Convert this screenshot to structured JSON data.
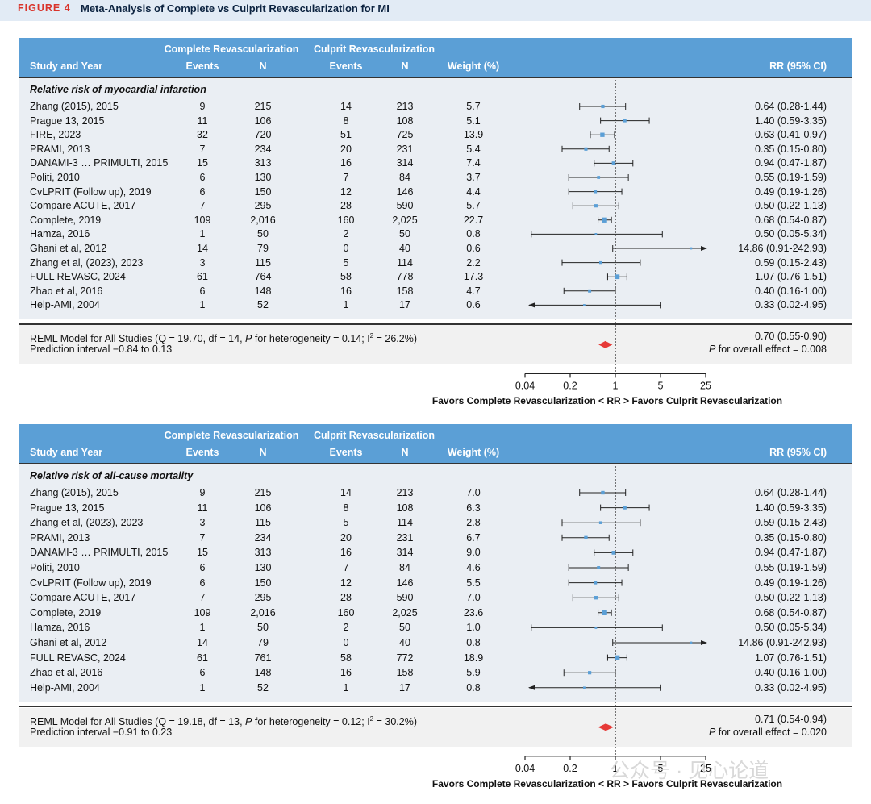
{
  "figure": {
    "label": "FIGURE 4",
    "title": "Meta-Analysis of Complete vs Culprit Revascularization for MI"
  },
  "headers": {
    "group_complete": "Complete Revascularization",
    "group_culprit": "Culprit Revascularization",
    "study": "Study and Year",
    "events": "Events",
    "n": "N",
    "weight": "Weight (%)",
    "rr": "RR (95% CI)"
  },
  "axis": {
    "ticks": [
      "0.04",
      "0.2",
      "1",
      "5",
      "25"
    ],
    "tick_values": [
      0.04,
      0.2,
      1,
      5,
      25
    ],
    "title": "Favors Complete Revascularization < RR > Favors Culprit Revascularization",
    "scale": "log",
    "null_value": 1
  },
  "chart_data": [
    {
      "type": "forest",
      "section_title": "Relative risk of myocardial infarction",
      "rows": [
        {
          "study": "Zhang (2015), 2015",
          "ce": "9",
          "cn": "215",
          "ue": "14",
          "un": "213",
          "w": "5.7",
          "rr_text": "0.64 (0.28-1.44)",
          "rr": 0.64,
          "lo": 0.28,
          "hi": 1.44
        },
        {
          "study": "Prague 13, 2015",
          "ce": "11",
          "cn": "106",
          "ue": "8",
          "un": "108",
          "w": "5.1",
          "rr_text": "1.40 (0.59-3.35)",
          "rr": 1.4,
          "lo": 0.59,
          "hi": 3.35
        },
        {
          "study": "FIRE, 2023",
          "ce": "32",
          "cn": "720",
          "ue": "51",
          "un": "725",
          "w": "13.9",
          "rr_text": "0.63 (0.41-0.97)",
          "rr": 0.63,
          "lo": 0.41,
          "hi": 0.97
        },
        {
          "study": "PRAMI, 2013",
          "ce": "7",
          "cn": "234",
          "ue": "20",
          "un": "231",
          "w": "5.4",
          "rr_text": "0.35 (0.15-0.80)",
          "rr": 0.35,
          "lo": 0.15,
          "hi": 0.8
        },
        {
          "study": "DANAMI-3 … PRIMULTI, 2015",
          "ce": "15",
          "cn": "313",
          "ue": "16",
          "un": "314",
          "w": "7.4",
          "rr_text": "0.94 (0.47-1.87)",
          "rr": 0.94,
          "lo": 0.47,
          "hi": 1.87
        },
        {
          "study": "Politi, 2010",
          "ce": "6",
          "cn": "130",
          "ue": "7",
          "un": "84",
          "w": "3.7",
          "rr_text": "0.55 (0.19-1.59)",
          "rr": 0.55,
          "lo": 0.19,
          "hi": 1.59
        },
        {
          "study": "CvLPRIT (Follow up), 2019",
          "ce": "6",
          "cn": "150",
          "ue": "12",
          "un": "146",
          "w": "4.4",
          "rr_text": "0.49 (0.19-1.26)",
          "rr": 0.49,
          "lo": 0.19,
          "hi": 1.26
        },
        {
          "study": "Compare ACUTE, 2017",
          "ce": "7",
          "cn": "295",
          "ue": "28",
          "un": "590",
          "w": "5.7",
          "rr_text": "0.50 (0.22-1.13)",
          "rr": 0.5,
          "lo": 0.22,
          "hi": 1.13
        },
        {
          "study": "Complete, 2019",
          "ce": "109",
          "cn": "2,016",
          "ue": "160",
          "un": "2,025",
          "w": "22.7",
          "rr_text": "0.68 (0.54-0.87)",
          "rr": 0.68,
          "lo": 0.54,
          "hi": 0.87
        },
        {
          "study": "Hamza, 2016",
          "ce": "1",
          "cn": "50",
          "ue": "2",
          "un": "50",
          "w": "0.8",
          "rr_text": "0.50 (0.05-5.34)",
          "rr": 0.5,
          "lo": 0.05,
          "hi": 5.34
        },
        {
          "study": "Ghani et al, 2012",
          "ce": "14",
          "cn": "79",
          "ue": "0",
          "un": "40",
          "w": "0.6",
          "rr_text": "14.86 (0.91-242.93)",
          "rr": 14.86,
          "lo": 0.91,
          "hi": 242.93
        },
        {
          "study": "Zhang et al, (2023), 2023",
          "ce": "3",
          "cn": "115",
          "ue": "5",
          "un": "114",
          "w": "2.2",
          "rr_text": "0.59 (0.15-2.43)",
          "rr": 0.59,
          "lo": 0.15,
          "hi": 2.43
        },
        {
          "study": "FULL REVASC, 2024",
          "ce": "61",
          "cn": "764",
          "ue": "58",
          "un": "778",
          "w": "17.3",
          "rr_text": "1.07 (0.76-1.51)",
          "rr": 1.07,
          "lo": 0.76,
          "hi": 1.51
        },
        {
          "study": "Zhao et al, 2016",
          "ce": "6",
          "cn": "148",
          "ue": "16",
          "un": "158",
          "w": "4.7",
          "rr_text": "0.40 (0.16-1.00)",
          "rr": 0.4,
          "lo": 0.16,
          "hi": 1.0
        },
        {
          "study": "Help-AMI, 2004",
          "ce": "1",
          "cn": "52",
          "ue": "1",
          "un": "17",
          "w": "0.6",
          "rr_text": "0.33 (0.02-4.95)",
          "rr": 0.33,
          "lo": 0.02,
          "hi": 4.95
        }
      ],
      "summary": {
        "model_pre": "REML Model for All Studies (Q = 19.70, df = 14, ",
        "p_italic": "P",
        "model_mid": " for heterogeneity = 0.14; I",
        "sup": "2",
        "model_post": " = 26.2%)",
        "prediction": "Prediction interval −0.84 to 0.13",
        "rr_text": "0.70 (0.55-0.90)",
        "overall_p_italic": "P",
        "overall_p": " for overall effect = 0.008",
        "rr": 0.7,
        "lo": 0.55,
        "hi": 0.9
      }
    },
    {
      "type": "forest",
      "section_title": "Relative risk of all-cause mortality",
      "rows": [
        {
          "study": "Zhang (2015), 2015",
          "ce": "9",
          "cn": "215",
          "ue": "14",
          "un": "213",
          "w": "7.0",
          "rr_text": "0.64 (0.28-1.44)",
          "rr": 0.64,
          "lo": 0.28,
          "hi": 1.44
        },
        {
          "study": "Prague 13, 2015",
          "ce": "11",
          "cn": "106",
          "ue": "8",
          "un": "108",
          "w": "6.3",
          "rr_text": "1.40 (0.59-3.35)",
          "rr": 1.4,
          "lo": 0.59,
          "hi": 3.35
        },
        {
          "study": "Zhang et al, (2023), 2023",
          "ce": "3",
          "cn": "115",
          "ue": "5",
          "un": "114",
          "w": "2.8",
          "rr_text": "0.59 (0.15-2.43)",
          "rr": 0.59,
          "lo": 0.15,
          "hi": 2.43
        },
        {
          "study": "PRAMI, 2013",
          "ce": "7",
          "cn": "234",
          "ue": "20",
          "un": "231",
          "w": "6.7",
          "rr_text": "0.35 (0.15-0.80)",
          "rr": 0.35,
          "lo": 0.15,
          "hi": 0.8
        },
        {
          "study": "DANAMI-3 … PRIMULTI, 2015",
          "ce": "15",
          "cn": "313",
          "ue": "16",
          "un": "314",
          "w": "9.0",
          "rr_text": "0.94 (0.47-1.87)",
          "rr": 0.94,
          "lo": 0.47,
          "hi": 1.87
        },
        {
          "study": "Politi, 2010",
          "ce": "6",
          "cn": "130",
          "ue": "7",
          "un": "84",
          "w": "4.6",
          "rr_text": "0.55 (0.19-1.59)",
          "rr": 0.55,
          "lo": 0.19,
          "hi": 1.59
        },
        {
          "study": "CvLPRIT (Follow up), 2019",
          "ce": "6",
          "cn": "150",
          "ue": "12",
          "un": "146",
          "w": "5.5",
          "rr_text": "0.49 (0.19-1.26)",
          "rr": 0.49,
          "lo": 0.19,
          "hi": 1.26
        },
        {
          "study": "Compare ACUTE, 2017",
          "ce": "7",
          "cn": "295",
          "ue": "28",
          "un": "590",
          "w": "7.0",
          "rr_text": "0.50 (0.22-1.13)",
          "rr": 0.5,
          "lo": 0.22,
          "hi": 1.13
        },
        {
          "study": "Complete, 2019",
          "ce": "109",
          "cn": "2,016",
          "ue": "160",
          "un": "2,025",
          "w": "23.6",
          "rr_text": "0.68 (0.54-0.87)",
          "rr": 0.68,
          "lo": 0.54,
          "hi": 0.87
        },
        {
          "study": "Hamza, 2016",
          "ce": "1",
          "cn": "50",
          "ue": "2",
          "un": "50",
          "w": "1.0",
          "rr_text": "0.50 (0.05-5.34)",
          "rr": 0.5,
          "lo": 0.05,
          "hi": 5.34
        },
        {
          "study": "Ghani et al, 2012",
          "ce": "14",
          "cn": "79",
          "ue": "0",
          "un": "40",
          "w": "0.8",
          "rr_text": "14.86 (0.91-242.93)",
          "rr": 14.86,
          "lo": 0.91,
          "hi": 242.93
        },
        {
          "study": "FULL REVASC, 2024",
          "ce": "61",
          "cn": "761",
          "ue": "58",
          "un": "772",
          "w": "18.9",
          "rr_text": "1.07 (0.76-1.51)",
          "rr": 1.07,
          "lo": 0.76,
          "hi": 1.51
        },
        {
          "study": "Zhao et al, 2016",
          "ce": "6",
          "cn": "148",
          "ue": "16",
          "un": "158",
          "w": "5.9",
          "rr_text": "0.40 (0.16-1.00)",
          "rr": 0.4,
          "lo": 0.16,
          "hi": 1.0
        },
        {
          "study": "Help-AMI, 2004",
          "ce": "1",
          "cn": "52",
          "ue": "1",
          "un": "17",
          "w": "0.8",
          "rr_text": "0.33 (0.02-4.95)",
          "rr": 0.33,
          "lo": 0.02,
          "hi": 4.95
        }
      ],
      "summary": {
        "model_pre": "REML Model for All Studies (Q = 19.18, df = 13, ",
        "p_italic": "P",
        "model_mid": " for heterogeneity = 0.12; I",
        "sup": "2",
        "model_post": " = 30.2%)",
        "prediction": "Prediction interval −0.91 to 0.23",
        "rr_text": "0.71 (0.54-0.94)",
        "overall_p_italic": "P",
        "overall_p": " for overall effect = 0.020",
        "rr": 0.71,
        "lo": 0.54,
        "hi": 0.94
      }
    }
  ],
  "colors": {
    "header_bg": "#5b9fd6",
    "body_bg": "#eaeef3",
    "point": "#5b9fd6",
    "diamond": "#e63a37",
    "fig_label": "#d9342b"
  },
  "watermark": "公众号 · 见心论道"
}
